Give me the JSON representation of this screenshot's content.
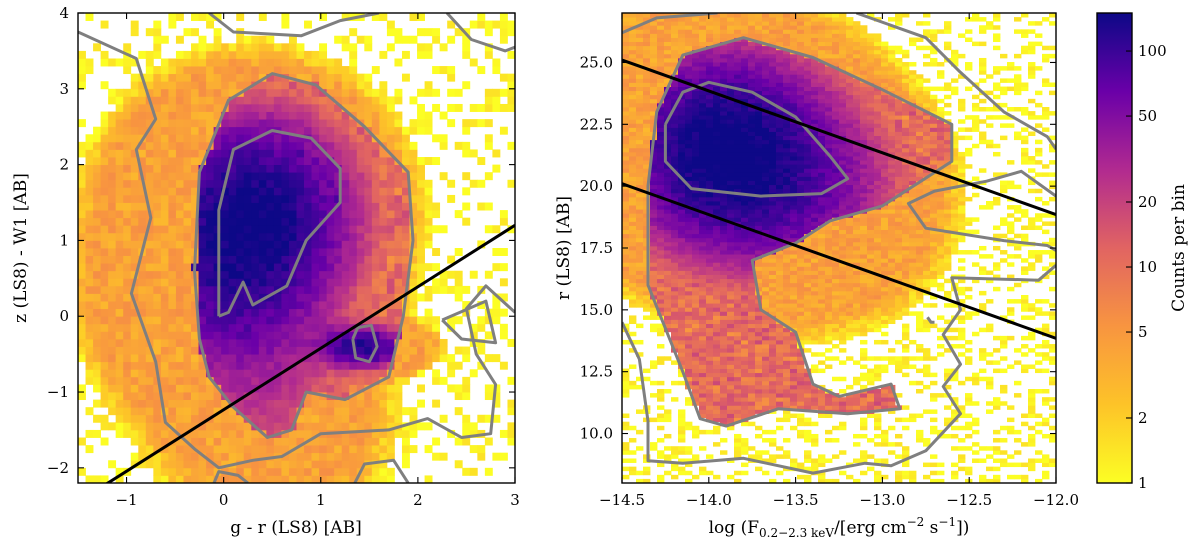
{
  "chart_data": [
    {
      "type": "heatmap",
      "id": "left",
      "xlabel": "g - r (LS8) [AB]",
      "ylabel": "z (LS8) - W1 [AB]",
      "xlim": [
        -1.5,
        3.0
      ],
      "ylim": [
        -2.2,
        4.0
      ],
      "xticks": [
        -1,
        0,
        1,
        2,
        3
      ],
      "xtick_labels": [
        "−1",
        "0",
        "1",
        "2",
        "3"
      ],
      "yticks": [
        -2,
        -1,
        0,
        1,
        2,
        3,
        4
      ],
      "ytick_labels": [
        "−2",
        "−1",
        "0",
        "1",
        "2",
        "3",
        "4"
      ],
      "density_peaks": [
        {
          "x": 0.3,
          "y": 1.35,
          "counts": 150
        },
        {
          "x": 0.05,
          "y": 0.2,
          "counts": 60
        },
        {
          "x": 1.45,
          "y": -0.4,
          "counts": 120
        },
        {
          "x": 0.5,
          "y": -1.3,
          "counts": 15
        }
      ],
      "lines": [
        {
          "x": [
            -1.5,
            3.0
          ],
          "y": [
            -2.45,
            1.2
          ]
        }
      ],
      "contours": [
        [
          [
            -0.05,
            0.0
          ],
          [
            -0.05,
            1.4
          ],
          [
            0.1,
            2.2
          ],
          [
            0.5,
            2.45
          ],
          [
            0.9,
            2.35
          ],
          [
            1.2,
            1.95
          ],
          [
            1.2,
            1.5
          ],
          [
            0.85,
            1.0
          ],
          [
            0.65,
            0.4
          ],
          [
            0.3,
            0.15
          ],
          [
            0.2,
            0.45
          ],
          [
            0.05,
            0.05
          ],
          [
            -0.05,
            0.0
          ]
        ],
        [
          [
            -0.25,
            -0.3
          ],
          [
            -0.3,
            0.6
          ],
          [
            -0.25,
            1.9
          ],
          [
            0.05,
            2.85
          ],
          [
            0.5,
            3.2
          ],
          [
            0.95,
            3.05
          ],
          [
            1.45,
            2.5
          ],
          [
            1.9,
            1.9
          ],
          [
            1.95,
            1.0
          ],
          [
            1.85,
            0.0
          ],
          [
            1.7,
            -0.8
          ],
          [
            1.25,
            -1.1
          ],
          [
            0.85,
            -1.0
          ],
          [
            0.7,
            -1.5
          ],
          [
            0.45,
            -1.6
          ],
          [
            0.1,
            -1.2
          ],
          [
            -0.15,
            -0.8
          ],
          [
            -0.25,
            -0.3
          ]
        ],
        [
          [
            1.33,
            -0.3
          ],
          [
            1.38,
            -0.15
          ],
          [
            1.52,
            -0.12
          ],
          [
            1.58,
            -0.4
          ],
          [
            1.5,
            -0.6
          ],
          [
            1.36,
            -0.55
          ],
          [
            1.33,
            -0.3
          ]
        ],
        [
          [
            -1.5,
            3.75
          ],
          [
            -0.9,
            3.4
          ],
          [
            -0.7,
            2.6
          ],
          [
            -0.9,
            2.2
          ],
          [
            -0.75,
            1.3
          ],
          [
            -0.95,
            0.3
          ],
          [
            -0.7,
            -0.6
          ],
          [
            -0.6,
            -1.4
          ],
          [
            -0.3,
            -1.75
          ],
          [
            -0.05,
            -2.0
          ],
          [
            0.3,
            -1.9
          ],
          [
            0.6,
            -1.85
          ],
          [
            1.0,
            -1.55
          ],
          [
            1.7,
            -1.5
          ],
          [
            2.1,
            -1.35
          ],
          [
            2.45,
            -1.6
          ],
          [
            2.75,
            -1.55
          ],
          [
            2.8,
            -0.9
          ],
          [
            2.6,
            -0.5
          ],
          [
            2.5,
            0.1
          ],
          [
            2.7,
            0.4
          ],
          [
            3.0,
            0.05
          ]
        ],
        [
          [
            2.25,
            -0.05
          ],
          [
            2.7,
            0.2
          ],
          [
            2.8,
            -0.35
          ],
          [
            2.45,
            -0.3
          ],
          [
            2.25,
            -0.05
          ]
        ],
        [
          [
            -0.1,
            -2.2
          ],
          [
            -0.05,
            -2.05
          ],
          [
            0.15,
            -2.1
          ],
          [
            0.25,
            -2.2
          ]
        ],
        [
          [
            1.35,
            -2.2
          ],
          [
            1.45,
            -1.95
          ],
          [
            1.75,
            -1.9
          ],
          [
            1.9,
            -2.2
          ]
        ],
        [
          [
            -0.15,
            4.0
          ],
          [
            0.1,
            3.75
          ],
          [
            0.8,
            3.7
          ],
          [
            1.2,
            3.9
          ],
          [
            1.6,
            4.0
          ]
        ],
        [
          [
            2.3,
            4.0
          ],
          [
            2.55,
            3.65
          ],
          [
            2.9,
            3.5
          ],
          [
            3.0,
            3.55
          ]
        ]
      ]
    },
    {
      "type": "heatmap",
      "id": "right",
      "xlabel": "log (F",
      "xlabel_sub": "0.2−2.3 keV",
      "xlabel_tail": "/[erg cm",
      "xlabel_sup1": "−2",
      "xlabel_mid": " s",
      "xlabel_sup2": "−1",
      "xlabel_end": "])",
      "ylabel": "r (LS8) [AB]",
      "xlim": [
        -14.5,
        -12.0
      ],
      "ylim": [
        8.0,
        27.0
      ],
      "xticks": [
        -14.5,
        -14.0,
        -13.5,
        -13.0,
        -12.5,
        -12.0
      ],
      "xtick_labels": [
        "−14.5",
        "−14.0",
        "−13.5",
        "−13.0",
        "−12.5",
        "−12.0"
      ],
      "yticks": [
        10.0,
        12.5,
        15.0,
        17.5,
        20.0,
        22.5,
        25.0
      ],
      "ytick_labels": [
        "10.0",
        "12.5",
        "15.0",
        "17.5",
        "20.0",
        "22.5",
        "25.0"
      ],
      "density_peaks": [
        {
          "x": -13.95,
          "y": 21.5,
          "counts": 150
        },
        {
          "x": -13.6,
          "y": 20.5,
          "counts": 50
        },
        {
          "x": -13.3,
          "y": 19.5,
          "counts": 20
        }
      ],
      "lines": [
        {
          "x": [
            -14.5,
            -12.0
          ],
          "y": [
            25.1,
            18.85
          ]
        },
        {
          "x": [
            -14.5,
            -12.0
          ],
          "y": [
            20.1,
            13.85
          ]
        }
      ],
      "contours": [
        [
          [
            -14.25,
            22.5
          ],
          [
            -14.15,
            23.8
          ],
          [
            -14.0,
            24.2
          ],
          [
            -13.75,
            23.8
          ],
          [
            -13.5,
            22.8
          ],
          [
            -13.3,
            21.2
          ],
          [
            -13.2,
            20.3
          ],
          [
            -13.35,
            19.7
          ],
          [
            -13.7,
            19.6
          ],
          [
            -14.1,
            19.9
          ],
          [
            -14.25,
            21.0
          ],
          [
            -14.25,
            22.5
          ]
        ],
        [
          [
            -14.15,
            12.5
          ],
          [
            -14.35,
            16.0
          ],
          [
            -14.35,
            20.0
          ],
          [
            -14.3,
            23.0
          ],
          [
            -14.15,
            25.3
          ],
          [
            -13.8,
            26.0
          ],
          [
            -13.4,
            25.2
          ],
          [
            -13.0,
            23.9
          ],
          [
            -12.6,
            22.5
          ],
          [
            -12.6,
            21.0
          ],
          [
            -13.0,
            19.2
          ],
          [
            -13.3,
            18.6
          ],
          [
            -13.5,
            17.7
          ],
          [
            -13.75,
            17.0
          ],
          [
            -13.7,
            15.0
          ],
          [
            -13.5,
            14.1
          ],
          [
            -13.4,
            12.0
          ],
          [
            -13.25,
            11.5
          ],
          [
            -12.95,
            12.0
          ],
          [
            -12.9,
            11.0
          ],
          [
            -13.2,
            10.8
          ],
          [
            -13.6,
            11.0
          ],
          [
            -13.9,
            10.3
          ],
          [
            -14.05,
            10.6
          ],
          [
            -14.15,
            12.5
          ]
        ],
        [
          [
            -14.5,
            26.2
          ],
          [
            -14.3,
            26.8
          ],
          [
            -13.95,
            27.0
          ]
        ],
        [
          [
            -13.15,
            27.0
          ],
          [
            -12.75,
            26.0
          ],
          [
            -12.55,
            24.6
          ],
          [
            -12.3,
            23.0
          ],
          [
            -12.05,
            22.0
          ],
          [
            -12.0,
            21.5
          ]
        ],
        [
          [
            -12.0,
            19.6
          ],
          [
            -12.2,
            20.6
          ],
          [
            -12.4,
            20.2
          ],
          [
            -12.7,
            19.8
          ],
          [
            -12.85,
            19.3
          ],
          [
            -12.75,
            18.3
          ],
          [
            -12.3,
            17.8
          ],
          [
            -12.05,
            17.6
          ],
          [
            -12.0,
            17.4
          ]
        ],
        [
          [
            -12.0,
            16.8
          ],
          [
            -12.1,
            16.2
          ],
          [
            -12.6,
            16.3
          ],
          [
            -12.55,
            15.0
          ],
          [
            -12.65,
            14.0
          ],
          [
            -12.55,
            12.8
          ],
          [
            -12.65,
            11.9
          ],
          [
            -12.55,
            10.8
          ],
          [
            -12.75,
            9.3
          ],
          [
            -12.95,
            8.7
          ],
          [
            -13.1,
            8.8
          ],
          [
            -13.4,
            8.4
          ],
          [
            -13.8,
            9.0
          ],
          [
            -14.15,
            8.8
          ],
          [
            -14.35,
            8.9
          ],
          [
            -14.35,
            10.5
          ],
          [
            -14.4,
            13.0
          ],
          [
            -14.5,
            14.5
          ]
        ],
        [
          [
            -12.74,
            14.7
          ],
          [
            -12.72,
            14.5
          ],
          [
            -12.7,
            14.5
          ]
        ]
      ]
    }
  ],
  "colorbar": {
    "label": "Counts per bin",
    "scale": "log",
    "range": [
      1,
      150
    ],
    "ticks": [
      1,
      2,
      5,
      10,
      20,
      50,
      100
    ],
    "tick_labels": [
      "1",
      "2",
      "5",
      "10",
      "20",
      "50",
      "100"
    ],
    "colors": [
      "#fcfe24",
      "#fdc328",
      "#f89540",
      "#e16462",
      "#b12a90",
      "#6a00a8",
      "#0d0887"
    ]
  }
}
